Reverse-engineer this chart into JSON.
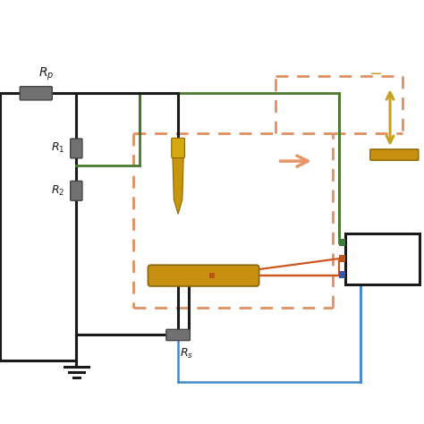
{
  "bg_color": "#ffffff",
  "figure_size": [
    4.74,
    4.74
  ],
  "dpi": 100,
  "colors": {
    "black": "#1a1a1a",
    "gray": "#717171",
    "green": "#4a7a2e",
    "blue": "#4488cc",
    "orange_dashed": "#e09060",
    "gold": "#c8a020",
    "gold_dark": "#a07808",
    "orange_line": "#cc5522",
    "salmon_arrow": "#e8956a",
    "osc_green": "#3a7a3a",
    "osc_orange": "#bb5511",
    "osc_blue": "#3355aa"
  },
  "lw_main": 2.2,
  "lw_green": 2.0,
  "lw_blue": 1.8,
  "lw_orange": 1.6
}
